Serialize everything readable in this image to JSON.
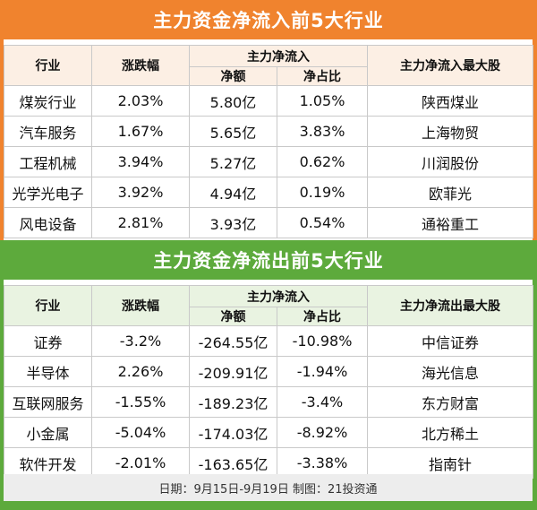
{
  "inflow": {
    "title": "主力资金净流入前5大行业",
    "headers": {
      "industry": "行业",
      "change": "涨跌幅",
      "main_net": "主力净流入",
      "net_amount": "净额",
      "net_ratio": "净占比",
      "top_stock": "主力净流入最大股"
    },
    "rows": [
      {
        "industry": "煤炭行业",
        "change": "2.03%",
        "net_amount": "5.80亿",
        "net_ratio": "1.05%",
        "top_stock": "陕西煤业"
      },
      {
        "industry": "汽车服务",
        "change": "1.67%",
        "net_amount": "5.65亿",
        "net_ratio": "3.83%",
        "top_stock": "上海物贸"
      },
      {
        "industry": "工程机械",
        "change": "3.94%",
        "net_amount": "5.27亿",
        "net_ratio": "0.62%",
        "top_stock": "川润股份"
      },
      {
        "industry": "光学光电子",
        "change": "3.92%",
        "net_amount": "4.94亿",
        "net_ratio": "0.19%",
        "top_stock": "欧菲光"
      },
      {
        "industry": "风电设备",
        "change": "2.81%",
        "net_amount": "3.93亿",
        "net_ratio": "0.54%",
        "top_stock": "通裕重工"
      }
    ]
  },
  "outflow": {
    "title": "主力资金净流出前5大行业",
    "headers": {
      "industry": "行业",
      "change": "涨跌幅",
      "main_net": "主力净流入",
      "net_amount": "净额",
      "net_ratio": "净占比",
      "top_stock": "主力净流出最大股"
    },
    "rows": [
      {
        "industry": "证券",
        "change": "-3.2%",
        "net_amount": "-264.55亿",
        "net_ratio": "-10.98%",
        "top_stock": "中信证券"
      },
      {
        "industry": "半导体",
        "change": "2.26%",
        "net_amount": "-209.91亿",
        "net_ratio": "-1.94%",
        "top_stock": "海光信息"
      },
      {
        "industry": "互联网服务",
        "change": "-1.55%",
        "net_amount": "-189.23亿",
        "net_ratio": "-3.4%",
        "top_stock": "东方财富"
      },
      {
        "industry": "小金属",
        "change": "-5.04%",
        "net_amount": "-174.03亿",
        "net_ratio": "-8.92%",
        "top_stock": "北方稀土"
      },
      {
        "industry": "软件开发",
        "change": "-2.01%",
        "net_amount": "-163.65亿",
        "net_ratio": "-3.38%",
        "top_stock": "指南针"
      }
    ]
  },
  "footer": "日期：9月15日-9月19日 制图：21投资通",
  "colors": {
    "inflow_accent": "#f0832e",
    "outflow_accent": "#5daa3c"
  }
}
